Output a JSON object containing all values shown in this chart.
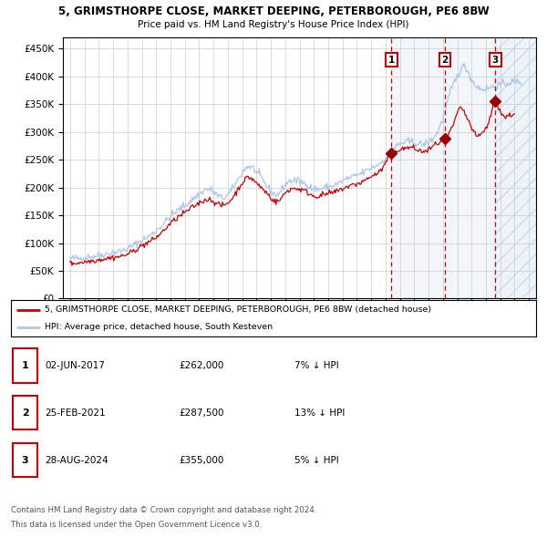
{
  "title1": "5, GRIMSTHORPE CLOSE, MARKET DEEPING, PETERBOROUGH, PE6 8BW",
  "title2": "Price paid vs. HM Land Registry's House Price Index (HPI)",
  "legend_line1": "5, GRIMSTHORPE CLOSE, MARKET DEEPING, PETERBOROUGH, PE6 8BW (detached house)",
  "legend_line2": "HPI: Average price, detached house, South Kesteven",
  "transactions": [
    {
      "num": 1,
      "date": "02-JUN-2017",
      "year": 2017.42,
      "price": 262000,
      "pct": "7%",
      "dir": "↓"
    },
    {
      "num": 2,
      "date": "25-FEB-2021",
      "year": 2021.15,
      "price": 287500,
      "pct": "13%",
      "dir": "↓"
    },
    {
      "num": 3,
      "date": "28-AUG-2024",
      "year": 2024.66,
      "price": 355000,
      "pct": "5%",
      "dir": "↓"
    }
  ],
  "hpi_color": "#aec6e8",
  "price_color": "#cc0000",
  "marker_color": "#990000",
  "vline_color": "#cc0000",
  "grid_color": "#cccccc",
  "background_color": "#ffffff",
  "footnote1": "Contains HM Land Registry data © Crown copyright and database right 2024.",
  "footnote2": "This data is licensed under the Open Government Licence v3.0.",
  "ylim": [
    0,
    470000
  ],
  "xmin": 1994.5,
  "xmax": 2027.5
}
